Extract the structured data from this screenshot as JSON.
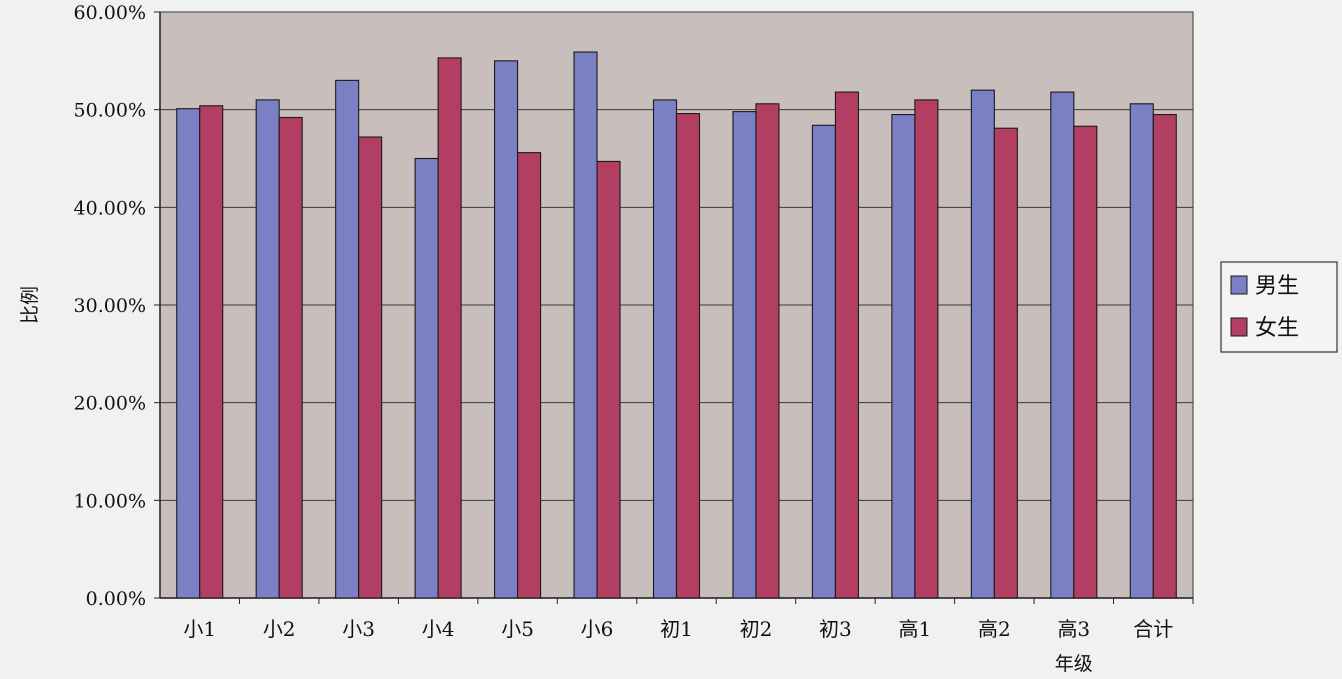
{
  "chart_data": {
    "type": "bar",
    "title": "",
    "xlabel": "年级",
    "ylabel": "比例",
    "ylim": [
      0,
      60
    ],
    "y_tick_step": 10,
    "y_tick_labels": [
      "0.00%",
      "10.00%",
      "20.00%",
      "30.00%",
      "40.00%",
      "50.00%",
      "60.00%"
    ],
    "grid": true,
    "legend_position": "right",
    "categories": [
      "小1",
      "小2",
      "小3",
      "小4",
      "小5",
      "小6",
      "初1",
      "初2",
      "初3",
      "高1",
      "高2",
      "高3",
      "合计"
    ],
    "series": [
      {
        "name": "男生",
        "color": "#7b7fc4",
        "values": [
          50.1,
          51.0,
          53.0,
          45.0,
          55.0,
          55.9,
          51.0,
          49.8,
          48.4,
          49.5,
          52.0,
          51.8,
          50.6
        ]
      },
      {
        "name": "女生",
        "color": "#b23f63",
        "values": [
          50.4,
          49.2,
          47.2,
          55.3,
          45.6,
          44.7,
          49.6,
          50.6,
          51.8,
          51.0,
          48.1,
          48.3,
          49.5
        ]
      }
    ],
    "plot_background": "#c8bebb",
    "bar_outline": "#1a1a1a"
  }
}
